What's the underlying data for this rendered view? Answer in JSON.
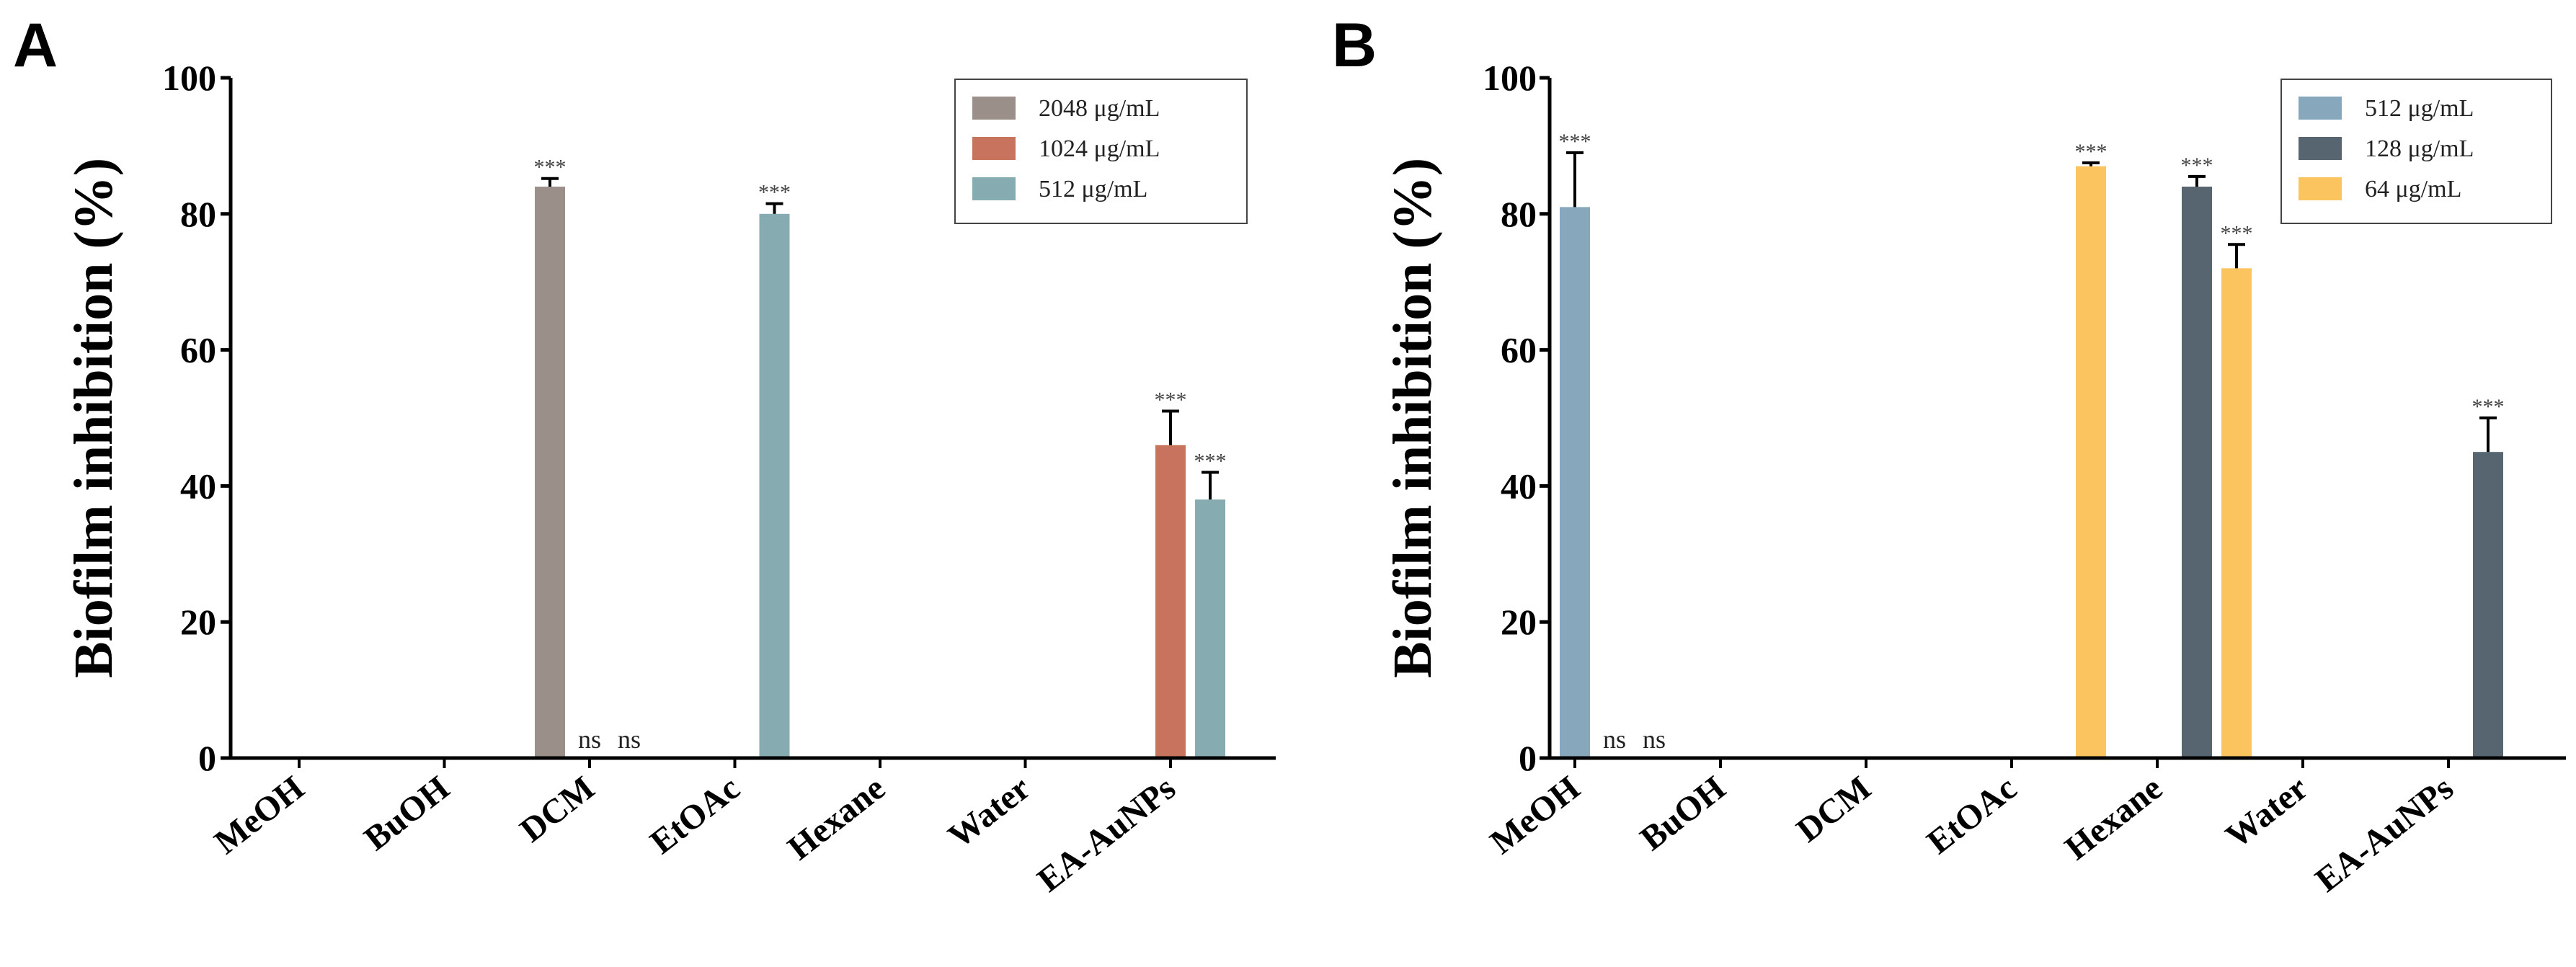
{
  "chart_data": [
    {
      "type": "bar",
      "panel": "A",
      "ylabel": "Biofilm inhibition (%)",
      "xlabel": "",
      "ylim": [
        0,
        100
      ],
      "yticks": [
        "0",
        "20",
        "40",
        "60",
        "80",
        "100"
      ],
      "categories": [
        "MeOH",
        "BuOH",
        "DCM",
        "EtOAc",
        "Hexane",
        "Water",
        "EA-AuNPs"
      ],
      "legend_position": "top-right",
      "series": [
        {
          "name": "2048 μg/mL",
          "color": "#9b8f89",
          "values": [
            0,
            0,
            84,
            0,
            0,
            0,
            0
          ],
          "errors": [
            0,
            0,
            1.2,
            0,
            0,
            0,
            0
          ],
          "labels": [
            "",
            "",
            "***",
            "",
            "",
            "",
            ""
          ]
        },
        {
          "name": "1024 μg/mL",
          "color": "#c8735d",
          "values": [
            0,
            0,
            0,
            0,
            0,
            0,
            46
          ],
          "errors": [
            0,
            0,
            0,
            0,
            0,
            0,
            5
          ],
          "labels": [
            "",
            "",
            "ns",
            "",
            "",
            "",
            "***"
          ]
        },
        {
          "name": "512 μg/mL",
          "color": "#86acb2",
          "values": [
            0,
            0,
            0,
            80,
            0,
            0,
            38
          ],
          "errors": [
            0,
            0,
            0,
            1.5,
            0,
            0,
            4
          ],
          "labels": [
            "",
            "",
            "ns",
            "***",
            "",
            "",
            "***"
          ]
        }
      ]
    },
    {
      "type": "bar",
      "panel": "B",
      "ylabel": "Biofilm inhibition (%)",
      "xlabel": "",
      "ylim": [
        0,
        100
      ],
      "yticks": [
        "0",
        "20",
        "40",
        "60",
        "80",
        "100"
      ],
      "categories": [
        "MeOH",
        "BuOH",
        "DCM",
        "EtOAc",
        "Hexane",
        "Water",
        "EA-AuNPs"
      ],
      "legend_position": "top-right",
      "series": [
        {
          "name": "512 μg/mL",
          "color": "#87a7bd",
          "values": [
            81,
            0,
            0,
            0,
            0,
            0,
            0
          ],
          "errors": [
            8,
            0,
            0,
            0,
            0,
            0,
            0
          ],
          "labels": [
            "***",
            "",
            "",
            "",
            "",
            "",
            ""
          ]
        },
        {
          "name": "128 μg/mL",
          "color": "#566570",
          "values": [
            0,
            0,
            0,
            0,
            84,
            0,
            45
          ],
          "errors": [
            0,
            0,
            0,
            0,
            1.5,
            0,
            5
          ],
          "labels": [
            "ns",
            "",
            "",
            "",
            "***",
            "",
            "***"
          ]
        },
        {
          "name": "64 μg/mL",
          "color": "#fcc45f",
          "values": [
            0,
            0,
            0,
            87,
            72,
            0,
            0
          ],
          "errors": [
            0,
            0,
            0,
            0.5,
            3.5,
            0,
            0
          ],
          "labels": [
            "ns",
            "",
            "",
            "***",
            "***",
            "",
            ""
          ]
        }
      ]
    }
  ]
}
